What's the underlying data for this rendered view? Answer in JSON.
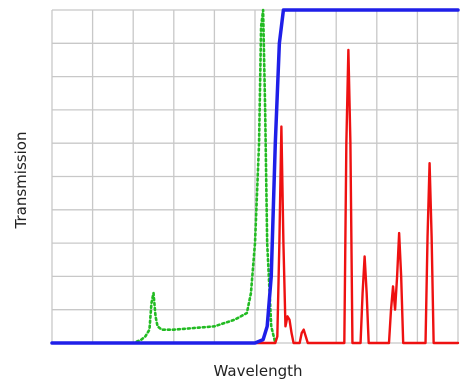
{
  "chart_data": {
    "type": "line",
    "title": "",
    "xlabel": "Wavelength",
    "ylabel": "Transmission",
    "xlim": [
      0,
      100
    ],
    "ylim": [
      0,
      100
    ],
    "grid": true,
    "grid_divisions": {
      "x": 10,
      "y": 10
    },
    "series": [
      {
        "color": "#1f1fe8",
        "style": "solid",
        "x": [
          0,
          50,
          52,
          53,
          54,
          55,
          56,
          57,
          58,
          60,
          100
        ],
        "y": [
          0,
          0,
          1,
          5,
          20,
          60,
          90,
          100,
          100,
          100,
          100
        ]
      },
      {
        "color": "#22bb22",
        "style": "dotted",
        "x": [
          0,
          20,
          22,
          23,
          24,
          24.5,
          25,
          25.5,
          26,
          27,
          30,
          40,
          45,
          48,
          49,
          50,
          51,
          51.5,
          52,
          52.5,
          53,
          54,
          55
        ],
        "y": [
          0,
          0,
          1,
          2,
          4,
          12,
          15,
          8,
          5,
          4,
          4,
          5,
          7,
          9,
          15,
          30,
          60,
          95,
          100,
          70,
          30,
          5,
          0
        ]
      },
      {
        "color": "#ee1111",
        "style": "solid",
        "x": [
          0,
          55,
          55.5,
          56,
          56.5,
          57,
          57.5,
          58,
          58.5,
          59,
          59.5,
          60,
          61,
          61.5,
          62,
          62.5,
          63,
          72,
          72.5,
          73,
          73.5,
          74,
          76,
          76.5,
          77,
          77.5,
          78,
          83,
          83.5,
          84,
          84.5,
          85,
          85.5,
          86,
          86.5,
          87,
          92,
          92.5,
          93,
          93.5,
          94,
          100
        ],
        "y": [
          0,
          0,
          2,
          30,
          65,
          30,
          5,
          8,
          7,
          3,
          0,
          0,
          0,
          3,
          4,
          2,
          0,
          0,
          60,
          88,
          60,
          0,
          0,
          15,
          26,
          15,
          0,
          0,
          10,
          17,
          10,
          20,
          33,
          20,
          0,
          0,
          0,
          32,
          54,
          32,
          0,
          0
        ]
      }
    ]
  }
}
